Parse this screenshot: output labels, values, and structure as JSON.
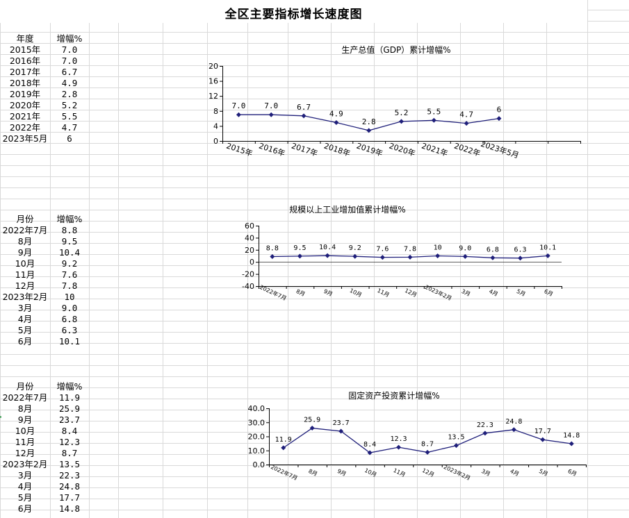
{
  "page": {
    "title": "全区主要指标增长速度图"
  },
  "tables": [
    {
      "header": [
        "年度",
        "增幅%"
      ],
      "rows": [
        [
          "2015年",
          "7.0"
        ],
        [
          "2016年",
          "7.0"
        ],
        [
          "2017年",
          "6.7"
        ],
        [
          "2018年",
          "4.9"
        ],
        [
          "2019年",
          "2.8"
        ],
        [
          "2020年",
          "5.2"
        ],
        [
          "2021年",
          "5.5"
        ],
        [
          "2022年",
          "4.7"
        ],
        [
          "2023年5月",
          "6"
        ]
      ]
    },
    {
      "header": [
        "月份",
        "增幅%"
      ],
      "rows": [
        [
          "2022年7月",
          "8.8"
        ],
        [
          "8月",
          "9.5"
        ],
        [
          "9月",
          "10.4"
        ],
        [
          "10月",
          "9.2"
        ],
        [
          "11月",
          "7.6"
        ],
        [
          "12月",
          "7.8"
        ],
        [
          "2023年2月",
          "10"
        ],
        [
          "3月",
          "9.0"
        ],
        [
          "4月",
          "6.8"
        ],
        [
          "5月",
          "6.3"
        ],
        [
          "6月",
          "10.1"
        ]
      ]
    },
    {
      "header": [
        "月份",
        "增幅%"
      ],
      "rows": [
        [
          "2022年7月",
          "11.9"
        ],
        [
          "8月",
          "25.9"
        ],
        [
          "9月",
          "23.7"
        ],
        [
          "10月",
          "8.4"
        ],
        [
          "11月",
          "12.3"
        ],
        [
          "12月",
          "8.7"
        ],
        [
          "2023年2月",
          "13.5"
        ],
        [
          "3月",
          "22.3"
        ],
        [
          "4月",
          "24.8"
        ],
        [
          "5月",
          "17.7"
        ],
        [
          "6月",
          "14.8"
        ]
      ]
    }
  ],
  "chart_data": [
    {
      "type": "line",
      "title": "生产总值（GDP）累计增幅%",
      "categories": [
        "2015年",
        "2016年",
        "2017年",
        "2018年",
        "2019年",
        "2020年",
        "2021年",
        "2022年",
        "2023年5月"
      ],
      "values": [
        7.0,
        7.0,
        6.7,
        4.9,
        2.8,
        5.2,
        5.5,
        4.7,
        6
      ],
      "labels": [
        "7.0",
        "7.0",
        "6.7",
        "4.9",
        "2.8",
        "5.2",
        "5.5",
        "4.7",
        "6"
      ],
      "yticks": [
        "0",
        "4",
        "8",
        "12",
        "16",
        "20"
      ],
      "ylim": [
        0,
        20
      ],
      "slots": 11,
      "color": "#1f1f7a"
    },
    {
      "type": "line",
      "title": "规模以上工业增加值累计增幅%",
      "categories": [
        "2022年7月",
        "8月",
        "9月",
        "10月",
        "11月",
        "12月",
        "2023年2月",
        "3月",
        "4月",
        "5月",
        "6月"
      ],
      "values": [
        8.8,
        9.5,
        10.4,
        9.2,
        7.6,
        7.8,
        10,
        9.0,
        6.8,
        6.3,
        10.1
      ],
      "labels": [
        "8.8",
        "9.5",
        "10.4",
        "9.2",
        "7.6",
        "7.8",
        "10",
        "9.0",
        "6.8",
        "6.3",
        "10.1"
      ],
      "yticks": [
        "-40",
        "-20",
        "0",
        "20",
        "40",
        "60"
      ],
      "ylim": [
        -40,
        60
      ],
      "slots": 11,
      "color": "#1f1f7a"
    },
    {
      "type": "line",
      "title": "固定资产投资累计增幅%",
      "categories": [
        "2022年7月",
        "8月",
        "9月",
        "10月",
        "11月",
        "12月",
        "2023年2月",
        "3月",
        "4月",
        "5月",
        "6月"
      ],
      "values": [
        11.9,
        25.9,
        23.7,
        8.4,
        12.3,
        8.7,
        13.5,
        22.3,
        24.8,
        17.7,
        14.8
      ],
      "labels": [
        "11.9",
        "25.9",
        "23.7",
        "8.4",
        "12.3",
        "8.7",
        "13.5",
        "22.3",
        "24.8",
        "17.7",
        "14.8"
      ],
      "yticks": [
        "0.0",
        "10.0",
        "20.0",
        "30.0",
        "40.0"
      ],
      "ylim": [
        0,
        40
      ],
      "slots": 11,
      "color": "#1f1f7a"
    }
  ]
}
